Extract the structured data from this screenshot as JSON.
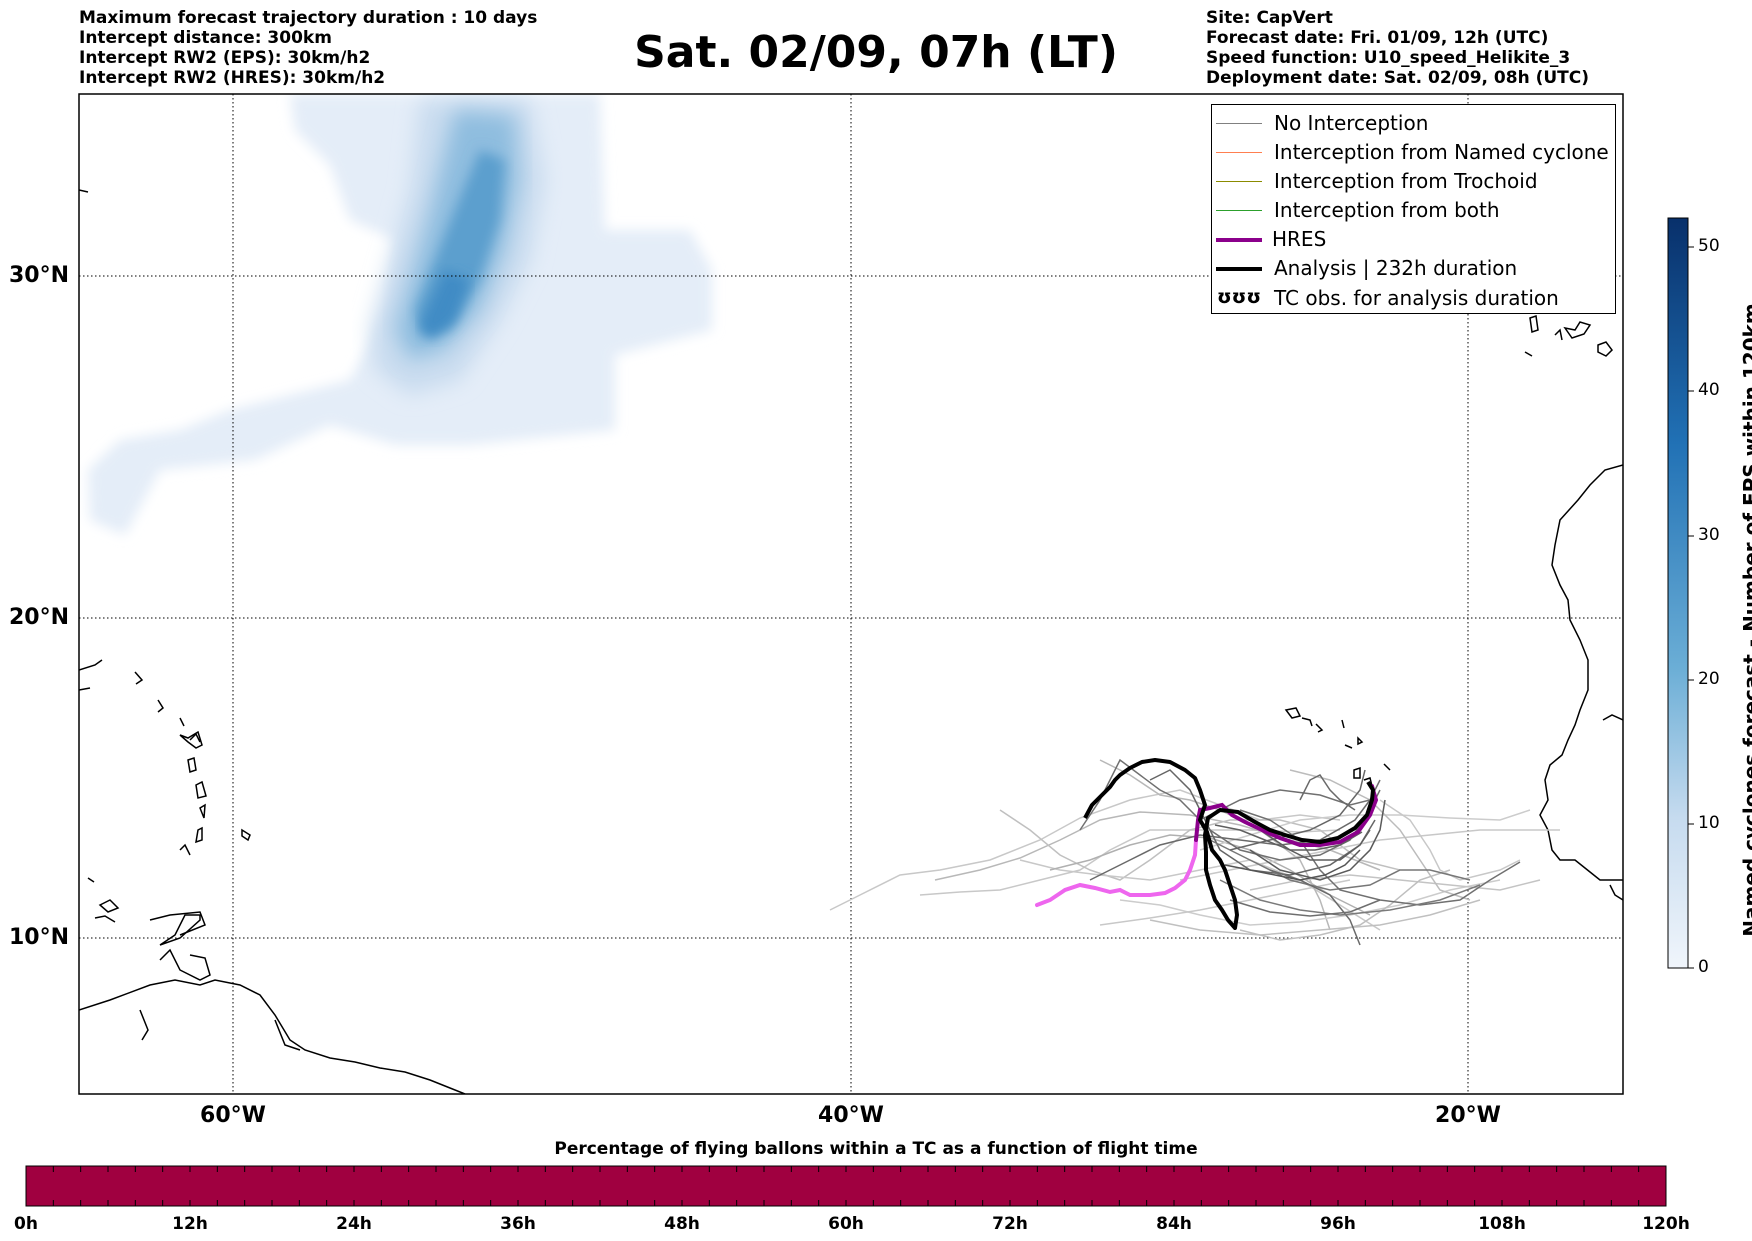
{
  "header_left": [
    "Maximum forecast trajectory duration : 10 days",
    "Intercept distance: 300km",
    "Intercept RW2 (EPS):  30km/h2",
    "Intercept RW2 (HRES): 30km/h2"
  ],
  "title": "Sat. 02/09, 07h (LT)",
  "header_right": [
    "Site: CapVert",
    "Forecast date: Fri. 01/09, 12h (UTC)",
    "Speed function: U10_speed_Helikite_3",
    "Deployment date: Sat. 02/09, 08h (UTC)"
  ],
  "map": {
    "lat_labels": [
      "30°N",
      "20°N",
      "10°N"
    ],
    "lon_labels": [
      "60°W",
      "40°W",
      "20°W"
    ]
  },
  "legend": [
    {
      "label": "No Interception",
      "color": "#808080"
    },
    {
      "label": "Interception from Named cyclone",
      "color": "#ff7f50"
    },
    {
      "label": "Interception from Trochoid",
      "color": "#8b8b00"
    },
    {
      "label": "Interception from both",
      "color": "#2ca02c"
    },
    {
      "label": "HRES",
      "color": "#8b008b"
    },
    {
      "label": "Analysis | 232h duration",
      "color": "#000000"
    },
    {
      "label": "TC obs. for analysis duration",
      "icon": "ʊʊʊ"
    }
  ],
  "colorbar": {
    "label": "Named cyclones forecast - Number of EPS within 120km",
    "ticks": [
      "0",
      "10",
      "20",
      "30",
      "40",
      "50"
    ],
    "min": 0,
    "max": 52,
    "color_low": "#e3edf8",
    "color_high": "#08306b"
  },
  "percentage_bar": {
    "title": "Percentage of flying ballons within a TC as a function of flight time",
    "ticks": [
      "0h",
      "12h",
      "24h",
      "36h",
      "48h",
      "60h",
      "72h",
      "84h",
      "96h",
      "108h",
      "120h"
    ],
    "fill_color": "#a00040"
  }
}
